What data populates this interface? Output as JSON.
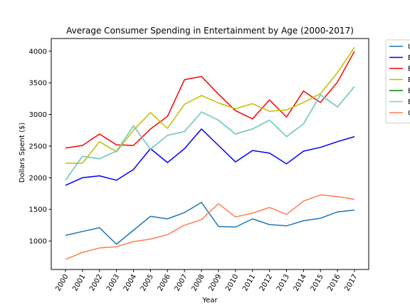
{
  "chart_data": {
    "type": "line",
    "title": "Average Consumer Spending in Entertainment by Age (2000-2017)",
    "xlabel": "Year",
    "ylabel": "Dollars Spent ($)",
    "x": [
      "2000",
      "2001",
      "2002",
      "2003",
      "2004",
      "2005",
      "2006",
      "2007",
      "2008",
      "2009",
      "2010",
      "2011",
      "2012",
      "2013",
      "2014",
      "2015",
      "2016",
      "2017"
    ],
    "ylim": [
      550,
      4200
    ],
    "yticks": [
      1000,
      1500,
      2000,
      2500,
      3000,
      3500,
      4000
    ],
    "grid": false,
    "legend_position": "outside-right",
    "series": [
      {
        "name": "U",
        "color": "#1f77b4",
        "values": [
          1090,
          1150,
          1210,
          950,
          1170,
          1390,
          1350,
          1450,
          1610,
          1230,
          1220,
          1350,
          1260,
          1240,
          1320,
          1360,
          1460,
          1490
        ]
      },
      {
        "name": "E",
        "color": "#0000ff",
        "values": [
          1880,
          2000,
          2030,
          1960,
          2130,
          2460,
          2240,
          2460,
          2770,
          2510,
          2250,
          2430,
          2390,
          2220,
          2420,
          2480,
          2570,
          2650
        ]
      },
      {
        "name": "E",
        "color": "#ff0000",
        "values": [
          2470,
          2510,
          2690,
          2520,
          2510,
          2770,
          2970,
          3550,
          3600,
          3320,
          3060,
          2930,
          3230,
          2960,
          3370,
          3190,
          3510,
          4000
        ]
      },
      {
        "name": "E",
        "color": "#bfbf00",
        "values": [
          2230,
          2230,
          2570,
          2410,
          2750,
          3030,
          2780,
          3160,
          3300,
          3180,
          3090,
          3170,
          3050,
          3070,
          3190,
          3330,
          3660,
          4060
        ]
      },
      {
        "name": "E",
        "color": "#008000",
        "values": [
          1960,
          2340,
          2300,
          2420,
          2820,
          2450,
          2670,
          2730,
          3040,
          2910,
          2690,
          2770,
          2910,
          2650,
          2850,
          3310,
          3120,
          3440
        ]
      },
      {
        "name": "E",
        "color": "#7fcfcf",
        "values": [
          1960,
          2340,
          2300,
          2420,
          2820,
          2450,
          2670,
          2730,
          3040,
          2910,
          2690,
          2770,
          2910,
          2650,
          2850,
          3310,
          3120,
          3440
        ]
      },
      {
        "name": "C",
        "color": "#ff7f50",
        "values": [
          710,
          820,
          890,
          910,
          990,
          1030,
          1100,
          1250,
          1340,
          1590,
          1380,
          1440,
          1530,
          1420,
          1630,
          1730,
          1700,
          1660
        ]
      }
    ]
  }
}
